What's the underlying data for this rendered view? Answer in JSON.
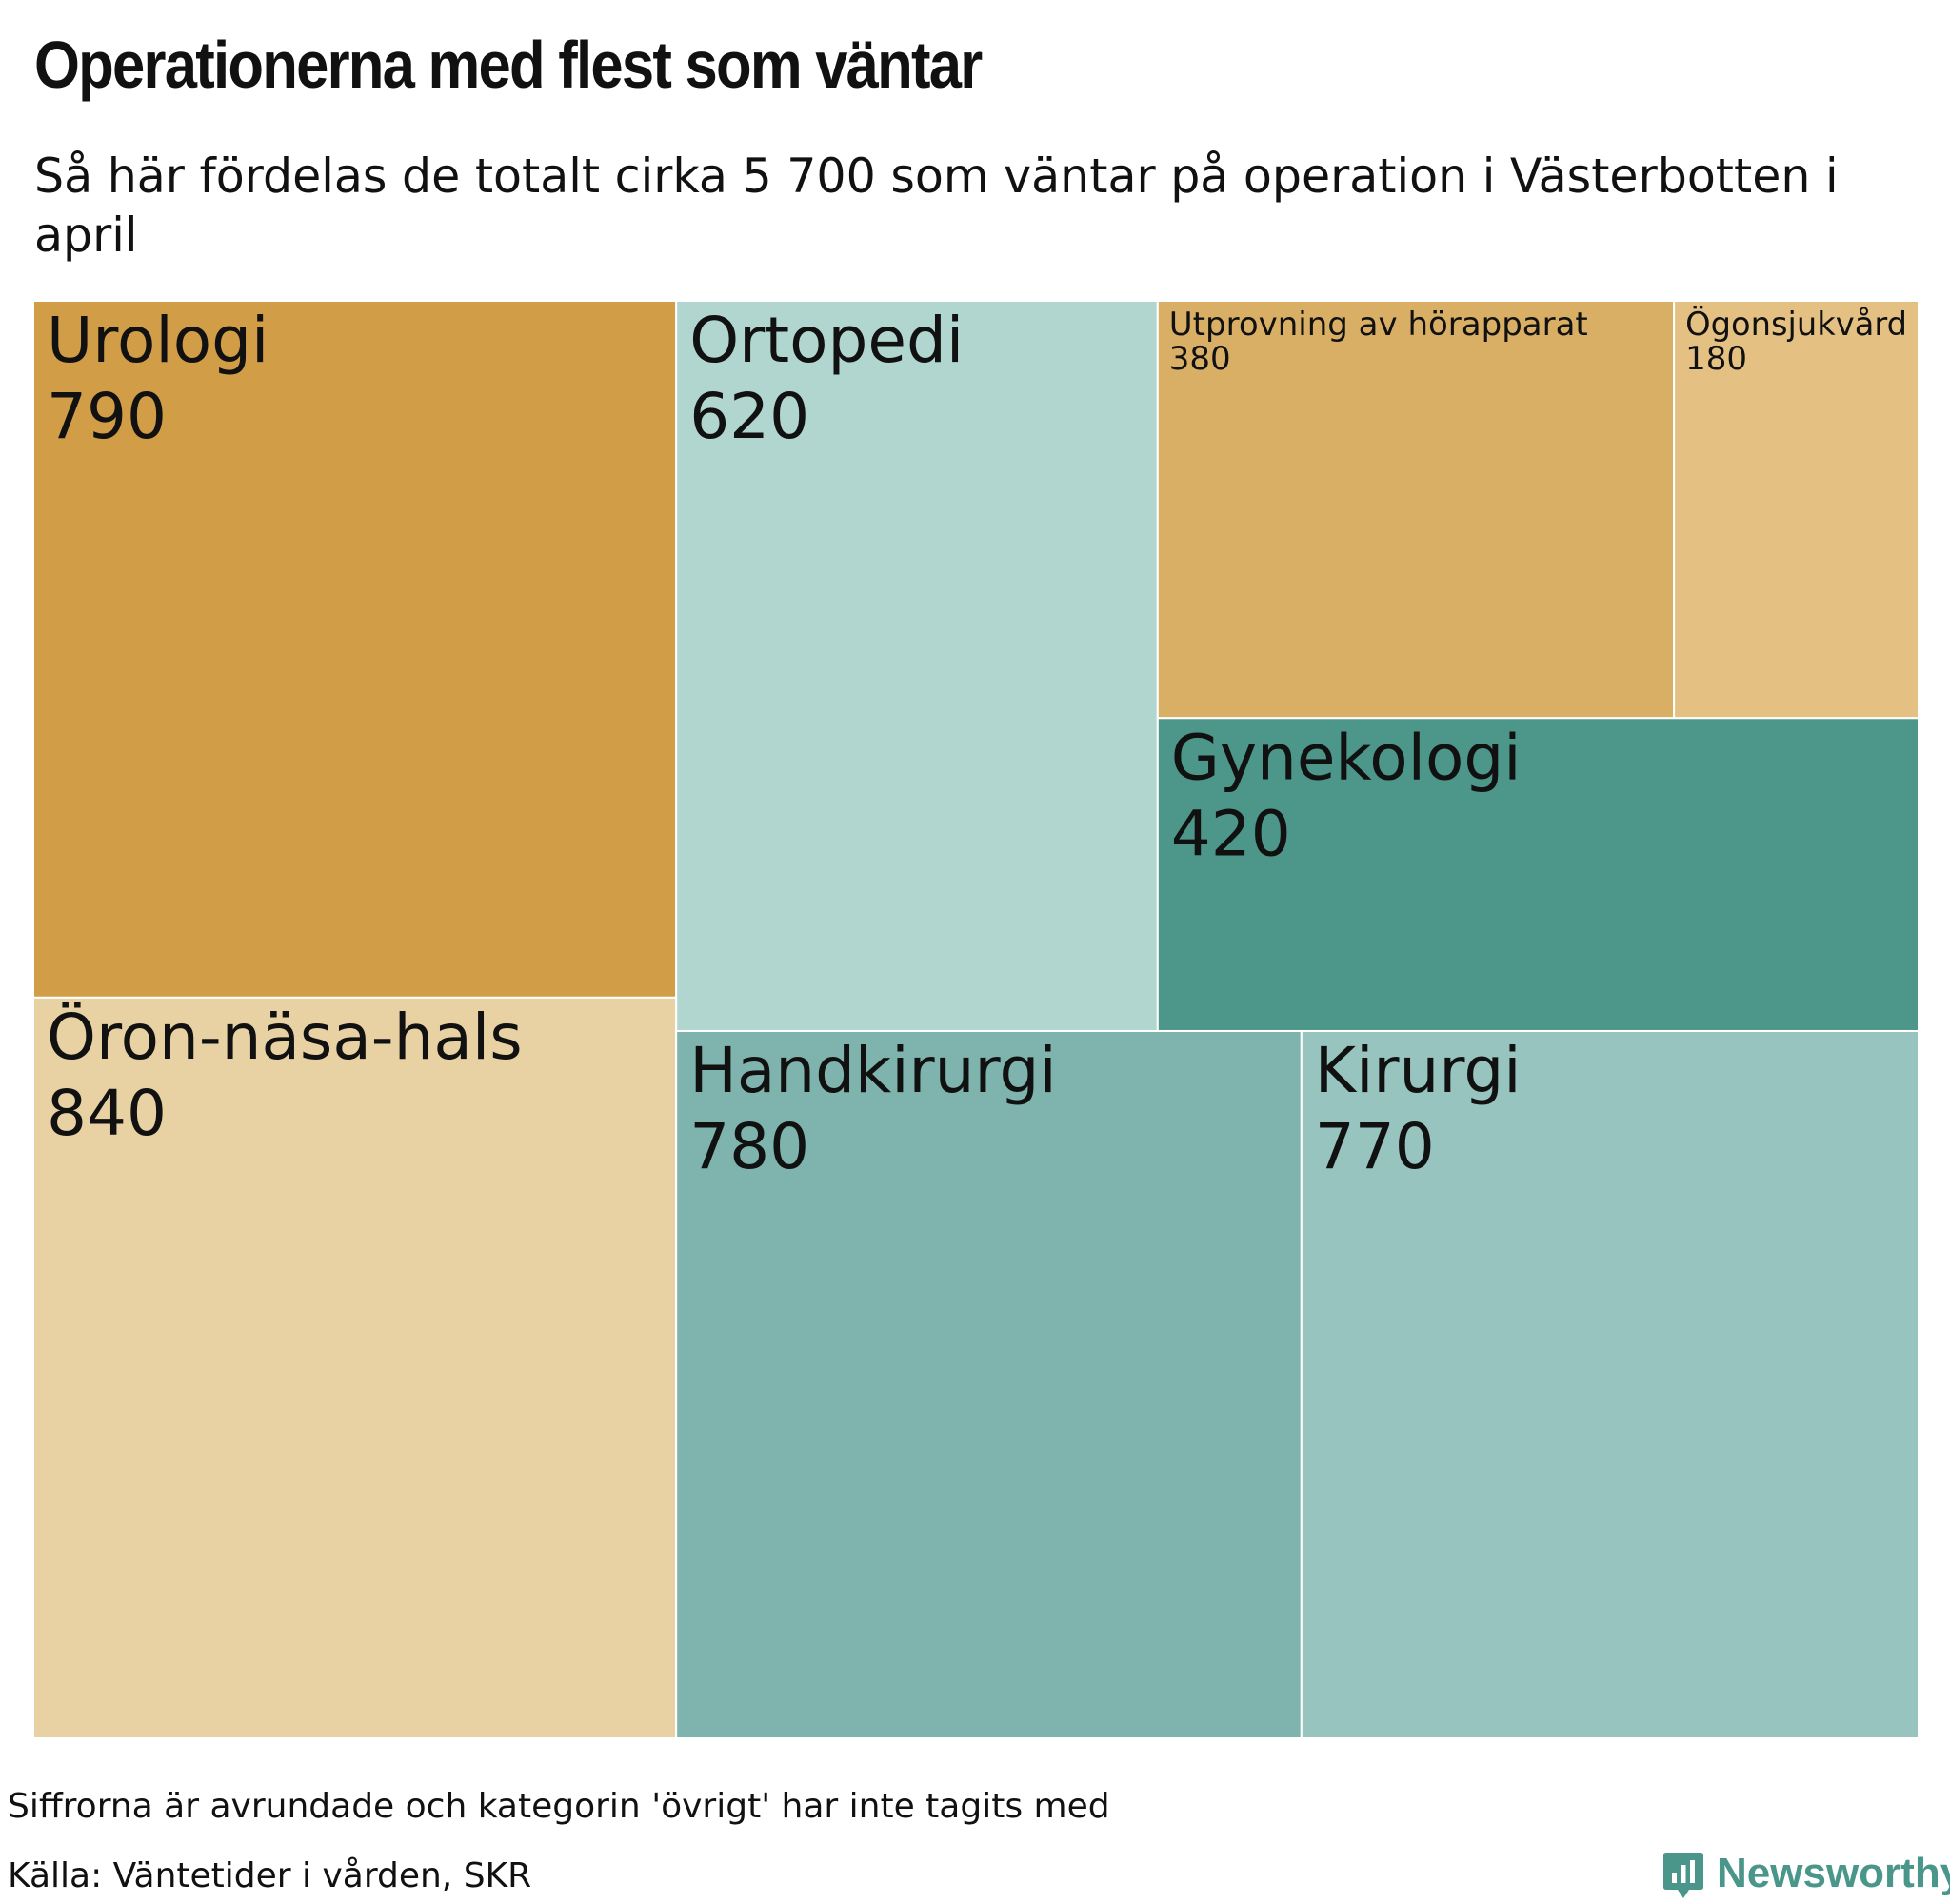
{
  "header": {
    "title": "Operationerna med flest som väntar",
    "subtitle": "Så här fördelas de totalt cirka 5 700 som väntar på operation i Västerbotten i april"
  },
  "chart_data": {
    "type": "treemap",
    "items": [
      {
        "name": "Urologi",
        "value": 790,
        "color": "#d19d47"
      },
      {
        "name": "Öron-näsa-hals",
        "value": 840,
        "color": "#e8d1a2"
      },
      {
        "name": "Ortopedi",
        "value": 620,
        "color": "#b1d6d0"
      },
      {
        "name": "Utprovning av hörapparat",
        "value": 380,
        "color": "#d9af65"
      },
      {
        "name": "Ögonsjukvård",
        "value": 180,
        "color": "#e4c183"
      },
      {
        "name": "Gynekologi",
        "value": 420,
        "color": "#4c968a"
      },
      {
        "name": "Handkirurgi",
        "value": 780,
        "color": "#7eb4ad"
      },
      {
        "name": "Kirurgi",
        "value": 770,
        "color": "#97c4be"
      }
    ]
  },
  "footer": {
    "note": "Siffrorna är avrundade och kategorin 'övrigt' har inte tagits med",
    "source": "Källa: Väntetider i vården, SKR",
    "brand": "Newsworthy",
    "brand_color": "#4a968a"
  }
}
